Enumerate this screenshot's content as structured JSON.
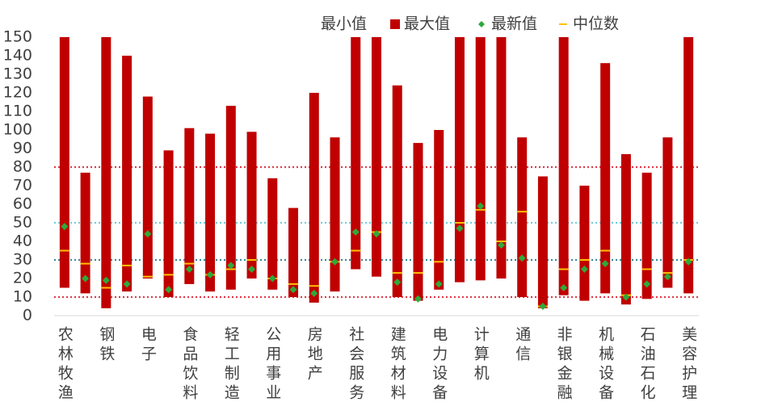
{
  "chart_data": {
    "type": "range_bar",
    "categories": [
      "农林牧渔",
      null,
      "钢铁",
      null,
      "电子",
      null,
      "食品饮料",
      null,
      "轻工制造",
      null,
      "公用事业",
      null,
      "房地产",
      null,
      "社会服务",
      null,
      "建筑材料",
      null,
      "电力设备",
      null,
      "计算机",
      null,
      "通信",
      null,
      "非银金融",
      null,
      "机械设备",
      null,
      "石油石化",
      null,
      "美容护理"
    ],
    "series": [
      {
        "name": "最小值",
        "values": [
          15,
          12,
          4,
          13,
          20,
          10,
          17,
          13,
          14,
          20,
          14,
          10,
          7,
          13,
          25,
          21,
          10,
          8,
          14,
          18,
          19,
          20,
          10,
          4,
          11,
          8,
          12,
          6,
          9,
          15,
          12
        ]
      },
      {
        "name": "最大值",
        "marker": "bar",
        "color": "#c00000",
        "values": [
          150,
          77,
          150,
          140,
          118,
          89,
          101,
          98,
          113,
          99,
          74,
          58,
          120,
          96,
          150,
          150,
          124,
          93,
          100,
          150,
          150,
          150,
          96,
          75,
          150,
          70,
          136,
          87,
          77,
          96,
          150
        ]
      },
      {
        "name": "最新值",
        "marker": "diamond",
        "color": "#2eaa3a",
        "values": [
          48,
          20,
          19,
          17,
          44,
          14,
          25,
          22,
          27,
          25,
          20,
          14,
          12,
          29,
          45,
          44,
          18,
          9,
          17,
          47,
          59,
          38,
          31,
          5,
          15,
          25,
          28,
          10,
          17,
          21,
          29
        ]
      },
      {
        "name": "中位数",
        "marker": "dash",
        "color": "#ffc000",
        "values": [
          35,
          28,
          15,
          27,
          21,
          22,
          28,
          22,
          25,
          30,
          20,
          17,
          16,
          29,
          35,
          45,
          23,
          23,
          29,
          50,
          57,
          40,
          56,
          5,
          25,
          30,
          35,
          11,
          25,
          23,
          30
        ]
      }
    ],
    "reference_lines": [
      {
        "value": 80,
        "color": "#e03a4a"
      },
      {
        "value": 50,
        "color": "#6fd0dc"
      },
      {
        "value": 30,
        "color": "#3a8a9a"
      },
      {
        "value": 10,
        "color": "#e03a4a"
      }
    ],
    "ylim": [
      0,
      150
    ],
    "yticks": [
      0,
      10,
      20,
      30,
      40,
      50,
      60,
      70,
      80,
      90,
      100,
      110,
      120,
      130,
      140,
      150
    ]
  }
}
